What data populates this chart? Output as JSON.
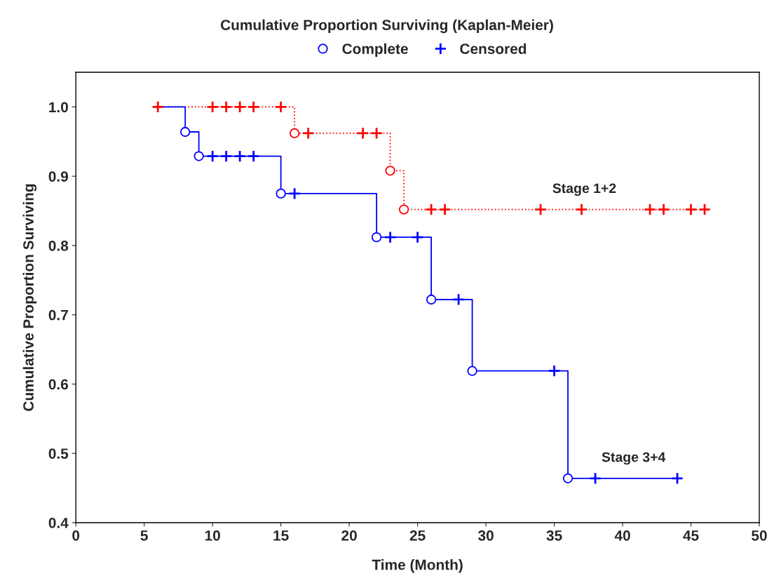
{
  "chart_data": {
    "type": "step",
    "title": "Cumulative Proportion Surviving (Kaplan-Meier)",
    "xlabel": "Time (Month)",
    "ylabel": "Cumulative Proportion Surviving",
    "series": [
      {
        "name": "Stage 1+2",
        "color": "#ff0000",
        "line_style": "dotted",
        "marker": "none",
        "x": [
          6,
          16,
          23,
          24,
          46
        ],
        "values": [
          1.0,
          0.962,
          0.908,
          0.852,
          0.852
        ]
      },
      {
        "name": "Stage 3+4",
        "color": "#0000ff",
        "line_style": "solid",
        "marker": "none",
        "x": [
          6,
          8,
          9,
          15,
          22,
          26,
          29,
          36,
          44
        ],
        "values": [
          1.0,
          0.964,
          0.929,
          0.875,
          0.812,
          0.722,
          0.619,
          0.464,
          0.464
        ]
      },
      {
        "type": "scatter",
        "name": "Complete",
        "color": "#0000ff",
        "marker": "circle",
        "x": [
          16,
          23,
          24,
          8,
          9,
          15,
          22,
          26,
          29,
          36
        ],
        "values": [
          0.962,
          0.908,
          0.852,
          0.964,
          0.929,
          0.875,
          0.812,
          0.722,
          0.619,
          0.464
        ],
        "colors": [
          "#ff0000",
          "#ff0000",
          "#ff0000",
          "#0000ff",
          "#0000ff",
          "#0000ff",
          "#0000ff",
          "#0000ff",
          "#0000ff",
          "#0000ff"
        ]
      },
      {
        "type": "scatter",
        "name": "Censored",
        "color": "#0000ff",
        "marker": "cross",
        "x": [
          6,
          10,
          11,
          12,
          13,
          15,
          17,
          21,
          22,
          26,
          27,
          34,
          37,
          42,
          43,
          45,
          46,
          10,
          11,
          12,
          13,
          16,
          23,
          25,
          28,
          35,
          38,
          44
        ],
        "values": [
          1.0,
          1.0,
          1.0,
          1.0,
          1.0,
          1.0,
          0.962,
          0.962,
          0.962,
          0.852,
          0.852,
          0.852,
          0.852,
          0.852,
          0.852,
          0.852,
          0.852,
          0.929,
          0.929,
          0.929,
          0.929,
          0.875,
          0.812,
          0.812,
          0.722,
          0.619,
          0.464,
          0.464
        ],
        "colors": [
          "#ff0000",
          "#ff0000",
          "#ff0000",
          "#ff0000",
          "#ff0000",
          "#ff0000",
          "#ff0000",
          "#ff0000",
          "#ff0000",
          "#ff0000",
          "#ff0000",
          "#ff0000",
          "#ff0000",
          "#ff0000",
          "#ff0000",
          "#ff0000",
          "#ff0000",
          "#0000ff",
          "#0000ff",
          "#0000ff",
          "#0000ff",
          "#0000ff",
          "#0000ff",
          "#0000ff",
          "#0000ff",
          "#0000ff",
          "#0000ff",
          "#0000ff"
        ]
      }
    ],
    "xlim": [
      0,
      50
    ],
    "xticks": [
      0,
      5,
      10,
      15,
      20,
      25,
      30,
      35,
      40,
      45,
      50
    ],
    "ylim": [
      0.4,
      1.05
    ],
    "yticks": [
      0.4,
      0.5,
      0.6,
      0.7,
      0.8,
      0.9,
      {
        "value": 1.0,
        "label": "1.0"
      }
    ],
    "grid": false,
    "legend": "top"
  }
}
